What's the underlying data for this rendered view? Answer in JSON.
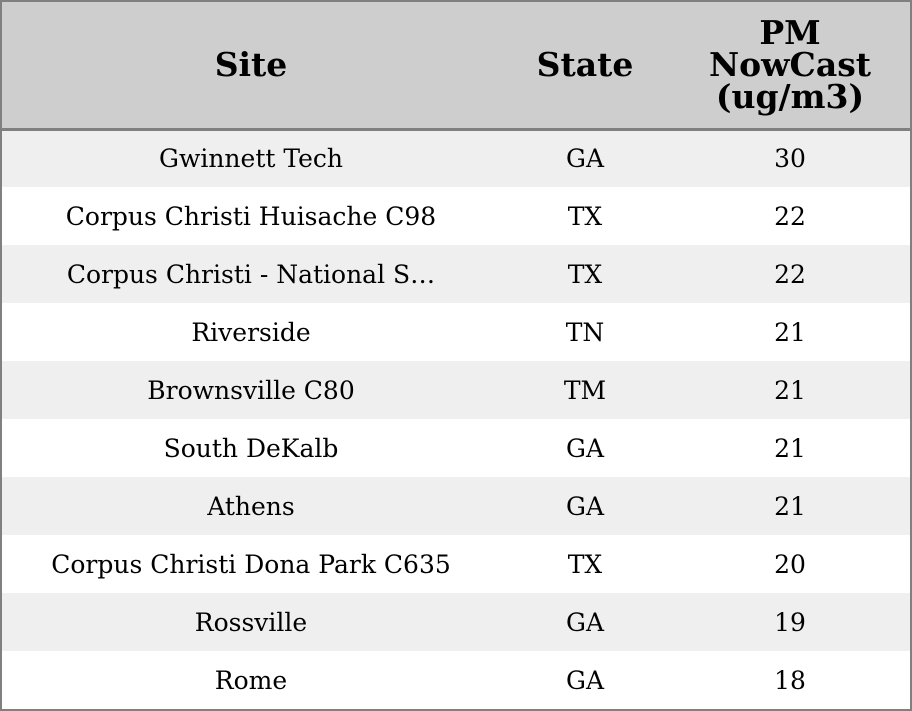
{
  "chart_data": {
    "type": "table",
    "columns": [
      "Site",
      "State",
      [
        "PM",
        "NowCast",
        "(ug/m3)"
      ]
    ],
    "rows": [
      [
        "Gwinnett Tech",
        "GA",
        "30"
      ],
      [
        "Corpus Christi Huisache C98",
        "TX",
        "22"
      ],
      [
        "Corpus Christi - National S…",
        "TX",
        "22"
      ],
      [
        "Riverside",
        "TN",
        "21"
      ],
      [
        "Brownsville C80",
        "TM",
        "21"
      ],
      [
        "South DeKalb",
        "GA",
        "21"
      ],
      [
        "Athens",
        "GA",
        "21"
      ],
      [
        "Corpus Christi Dona Park C635",
        "TX",
        "20"
      ],
      [
        "Rossville",
        "GA",
        "19"
      ],
      [
        "Rome",
        "GA",
        "18"
      ]
    ],
    "colors": {
      "header_bg": "#cecece",
      "row_odd_bg": "#efefef",
      "row_even_bg": "#ffffff",
      "border": "#808080"
    }
  }
}
